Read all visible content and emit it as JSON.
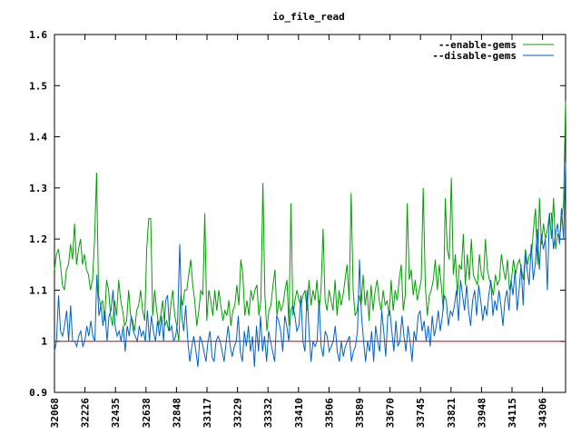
{
  "chart_data": {
    "type": "line",
    "title": "io_file_read",
    "xlabel": "",
    "ylabel": "",
    "ylim": [
      0.9,
      1.6
    ],
    "yticks": [
      "0.9",
      "1",
      "1.1",
      "1.2",
      "1.3",
      "1.4",
      "1.5",
      "1.6"
    ],
    "xticks": [
      "32068",
      "32226",
      "32435",
      "32638",
      "32848",
      "33117",
      "33229",
      "33332",
      "33410",
      "33506",
      "33589",
      "33670",
      "33745",
      "33821",
      "33948",
      "34115",
      "34306"
    ],
    "grid": false,
    "legend_position": "top-right",
    "reference_line": {
      "value": 1.0,
      "color": "#cc0000"
    },
    "colors": {
      "enable": "#00a000",
      "disable": "#0060cc",
      "frame": "#000000"
    },
    "series": [
      {
        "name": "--enable-gems",
        "values": [
          1.14,
          1.17,
          1.18,
          1.15,
          1.11,
          1.1,
          1.14,
          1.15,
          1.19,
          1.16,
          1.23,
          1.15,
          1.18,
          1.2,
          1.15,
          1.17,
          1.14,
          1.13,
          1.1,
          1.12,
          1.2,
          1.33,
          1.09,
          1.07,
          1.08,
          1.04,
          1.12,
          1.1,
          1.05,
          1.03,
          1.08,
          1.05,
          1.12,
          1.08,
          1.06,
          1.03,
          1.04,
          1.1,
          1.05,
          1.04,
          1.02,
          1.06,
          1.07,
          1.1,
          1.06,
          1.04,
          1.18,
          1.24,
          1.24,
          1.05,
          1.1,
          1.06,
          1.03,
          1.05,
          1.08,
          1.03,
          1.04,
          1.02,
          1.07,
          1.1,
          1.05,
          1.03,
          1.0,
          1.09,
          1.07,
          1.1,
          1.1,
          1.13,
          1.16,
          1.11,
          1.08,
          1.03,
          1.06,
          1.1,
          1.09,
          1.25,
          1.04,
          1.1,
          1.08,
          1.05,
          1.1,
          1.06,
          1.1,
          1.07,
          1.04,
          1.06,
          1.05,
          1.08,
          1.03,
          1.06,
          1.07,
          1.11,
          1.07,
          1.16,
          1.13,
          1.05,
          1.08,
          1.05,
          1.1,
          1.08,
          1.1,
          1.11,
          1.05,
          1.08,
          1.31,
          1.09,
          1.02,
          1.06,
          1.07,
          1.11,
          1.14,
          1.05,
          1.08,
          1.06,
          1.07,
          1.1,
          1.12,
          1.03,
          1.27,
          1.05,
          1.08,
          1.1,
          1.08,
          1.07,
          1.09,
          1.1,
          1.06,
          1.12,
          1.07,
          1.1,
          1.08,
          1.12,
          1.06,
          1.1,
          1.22,
          1.08,
          1.06,
          1.1,
          1.08,
          1.06,
          1.12,
          1.05,
          1.1,
          1.07,
          1.09,
          1.12,
          1.15,
          1.08,
          1.29,
          1.1,
          1.05,
          1.06,
          1.09,
          1.07,
          1.13,
          1.07,
          1.1,
          1.04,
          1.11,
          1.06,
          1.1,
          1.12,
          1.08,
          1.06,
          1.1,
          1.07,
          1.08,
          1.05,
          1.12,
          1.06,
          1.1,
          1.08,
          1.12,
          1.15,
          1.06,
          1.09,
          1.27,
          1.12,
          1.14,
          1.09,
          1.12,
          1.08,
          1.1,
          1.12,
          1.3,
          1.11,
          1.05,
          1.09,
          1.1,
          1.12,
          1.16,
          1.1,
          1.15,
          1.11,
          1.06,
          1.28,
          1.18,
          1.16,
          1.32,
          1.13,
          1.17,
          1.09,
          1.15,
          1.14,
          1.21,
          1.11,
          1.17,
          1.12,
          1.2,
          1.13,
          1.12,
          1.11,
          1.17,
          1.13,
          1.12,
          1.2,
          1.14,
          1.12,
          1.11,
          1.09,
          1.13,
          1.11,
          1.12,
          1.17,
          1.14,
          1.12,
          1.16,
          1.1,
          1.12,
          1.16,
          1.13,
          1.15,
          1.16,
          1.14,
          1.12,
          1.18,
          1.15,
          1.17,
          1.17,
          1.22,
          1.26,
          1.15,
          1.28,
          1.19,
          1.23,
          1.2,
          1.22,
          1.25,
          1.2,
          1.28,
          1.18,
          1.21,
          1.2,
          1.24,
          1.27,
          1.47
        ]
      },
      {
        "name": "--disable-gems",
        "values": [
          0.98,
          1.0,
          1.09,
          1.02,
          1.01,
          1.03,
          1.06,
          1.0,
          1.07,
          1.0,
          1.0,
          0.99,
          1.01,
          1.02,
          0.99,
          1.0,
          1.03,
          1.01,
          1.04,
          1.01,
          1.0,
          1.13,
          1.05,
          1.07,
          1.03,
          1.06,
          1.0,
          1.05,
          1.06,
          1.1,
          1.03,
          1.01,
          1.02,
          1.0,
          1.03,
          0.98,
          1.03,
          1.01,
          1.05,
          1.02,
          1.01,
          1.0,
          1.03,
          1.01,
          1.02,
          1.0,
          1.06,
          1.0,
          1.05,
          1.02,
          1.0,
          1.04,
          1.01,
          1.05,
          1.0,
          1.08,
          1.09,
          1.02,
          1.03,
          1.0,
          1.01,
          1.04,
          1.19,
          1.05,
          1.02,
          1.07,
          1.0,
          0.96,
          0.99,
          1.01,
          0.98,
          0.95,
          1.01,
          1.0,
          0.98,
          0.96,
          1.0,
          1.02,
          0.97,
          0.96,
          1.0,
          1.01,
          1.0,
          0.98,
          0.96,
          1.0,
          1.03,
          0.99,
          0.97,
          0.99,
          1.0,
          1.05,
          0.98,
          0.96,
          1.02,
          0.99,
          1.03,
          0.98,
          1.01,
          0.95,
          1.03,
          0.98,
          1.05,
          0.98,
          1.01,
          0.96,
          1.02,
          1.0,
          0.98,
          0.96,
          1.05,
          1.04,
          1.02,
          0.98,
          1.05,
          1.03,
          1.0,
          1.06,
          1.07,
          1.05,
          1.02,
          1.03,
          1.09,
          1.0,
          0.98,
          1.1,
          1.02,
          0.96,
          1.0,
          0.99,
          1.0,
          1.08,
          0.99,
          0.97,
          1.02,
          1.01,
          0.98,
          0.99,
          1.0,
          1.03,
          0.98,
          0.96,
          1.0,
          0.97,
          0.99,
          1.0,
          1.01,
          0.96,
          0.98,
          0.99,
          1.02,
          1.16,
          1.05,
          1.0,
          0.96,
          1.0,
          0.98,
          1.02,
          0.96,
          1.03,
          1.0,
          0.98,
          1.06,
          1.02,
          0.97,
          1.05,
          1.06,
          1.02,
          0.98,
          1.04,
          0.99,
          1.0,
          1.05,
          1.01,
          0.98,
          1.03,
          1.0,
          0.96,
          1.02,
          1.0,
          1.05,
          1.06,
          1.02,
          1.04,
          1.0,
          1.03,
          0.99,
          1.05,
          1.01,
          1.03,
          1.06,
          1.02,
          1.05,
          1.09,
          1.08,
          1.03,
          1.06,
          1.05,
          1.07,
          1.1,
          1.04,
          1.12,
          1.09,
          1.06,
          1.11,
          1.06,
          1.03,
          1.08,
          1.1,
          1.05,
          1.11,
          1.08,
          1.04,
          1.07,
          1.05,
          1.09,
          1.12,
          1.05,
          1.08,
          1.06,
          1.1,
          1.07,
          1.03,
          1.08,
          1.1,
          1.06,
          1.12,
          1.09,
          1.14,
          1.06,
          1.1,
          1.15,
          1.07,
          1.17,
          1.14,
          1.11,
          1.19,
          1.12,
          1.15,
          1.22,
          1.14,
          1.21,
          1.18,
          1.2,
          1.1,
          1.25,
          1.25,
          1.18,
          1.21,
          1.23,
          1.19,
          1.26,
          1.2,
          1.35
        ]
      }
    ]
  }
}
